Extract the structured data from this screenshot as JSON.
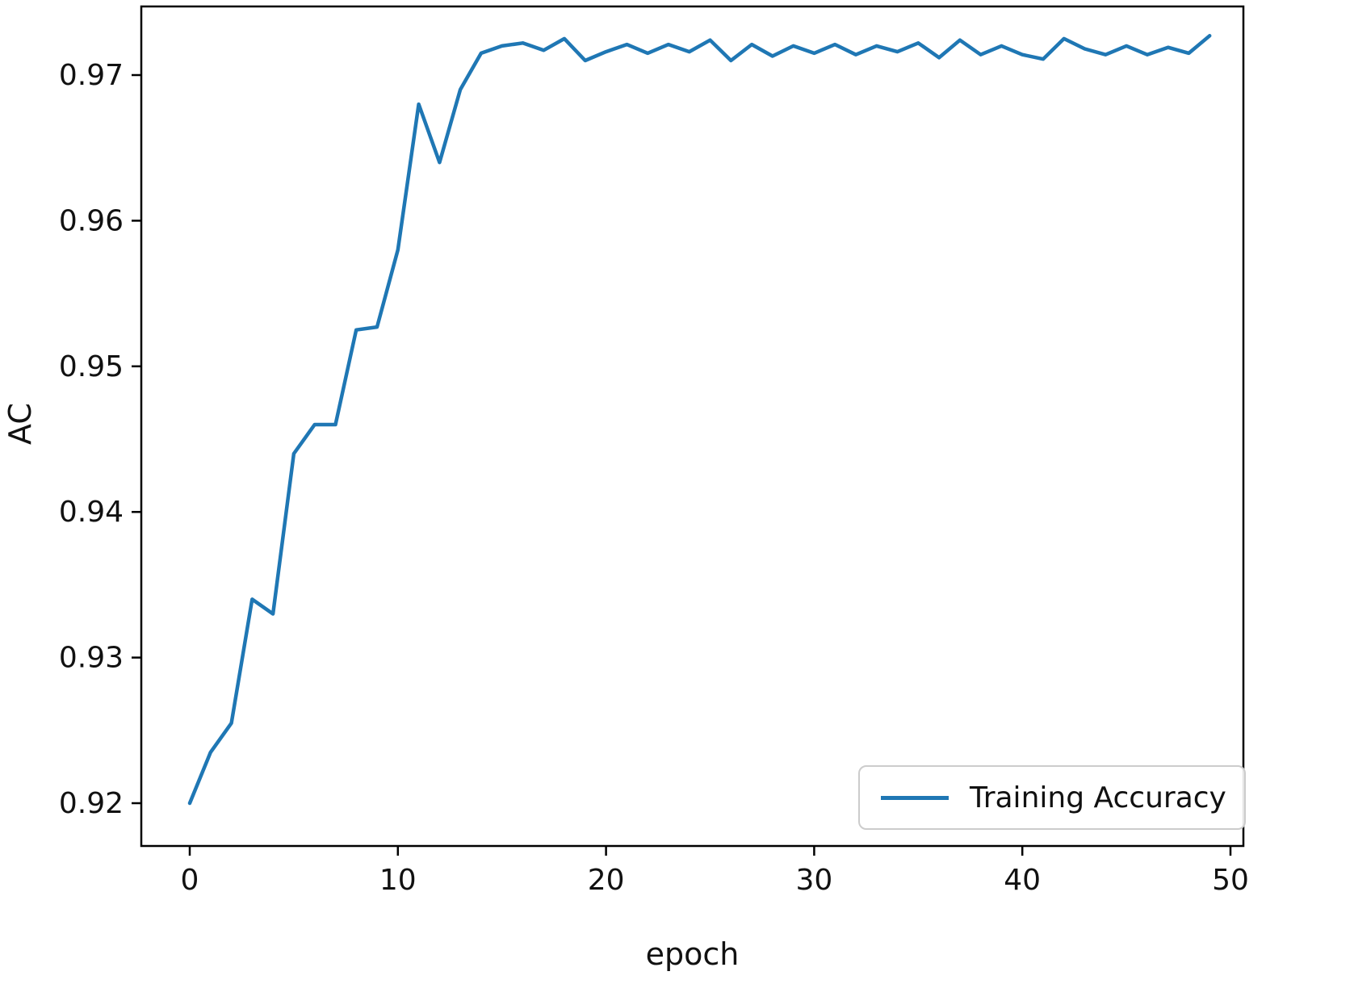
{
  "chart_data": {
    "type": "line",
    "title": "",
    "xlabel": "epoch",
    "ylabel": "AC",
    "grid": false,
    "axis_color": "#000000",
    "xlim": [
      -2.3,
      50.6
    ],
    "ylim": [
      0.9171,
      0.9747
    ],
    "xticks": [
      0,
      10,
      20,
      30,
      40,
      50
    ],
    "xtick_labels": [
      "0",
      "10",
      "20",
      "30",
      "40",
      "50"
    ],
    "yticks": [
      0.92,
      0.93,
      0.94,
      0.95,
      0.96,
      0.97
    ],
    "ytick_labels": [
      "0.92",
      "0.93",
      "0.94",
      "0.95",
      "0.96",
      "0.97"
    ],
    "x": [
      0,
      1,
      2,
      3,
      4,
      5,
      6,
      7,
      8,
      9,
      10,
      11,
      12,
      13,
      14,
      15,
      16,
      17,
      18,
      19,
      20,
      21,
      22,
      23,
      24,
      25,
      26,
      27,
      28,
      29,
      30,
      31,
      32,
      33,
      34,
      35,
      36,
      37,
      38,
      39,
      40,
      41,
      42,
      43,
      44,
      45,
      46,
      47,
      48,
      49
    ],
    "series": [
      {
        "name": "Training Accuracy",
        "color": "#1f77b4",
        "values": [
          0.92,
          0.9235,
          0.9255,
          0.934,
          0.933,
          0.944,
          0.946,
          0.946,
          0.9525,
          0.9527,
          0.958,
          0.968,
          0.964,
          0.969,
          0.9715,
          0.972,
          0.9722,
          0.9717,
          0.9725,
          0.971,
          0.9716,
          0.9721,
          0.9715,
          0.9721,
          0.9716,
          0.9724,
          0.971,
          0.9721,
          0.9713,
          0.972,
          0.9715,
          0.9721,
          0.9714,
          0.972,
          0.9716,
          0.9722,
          0.9712,
          0.9724,
          0.9714,
          0.972,
          0.9714,
          0.9711,
          0.9725,
          0.9718,
          0.9714,
          0.972,
          0.9714,
          0.9719,
          0.9715,
          0.9727
        ]
      }
    ],
    "legend": {
      "label": "Training Accuracy",
      "position": "lower right"
    }
  }
}
